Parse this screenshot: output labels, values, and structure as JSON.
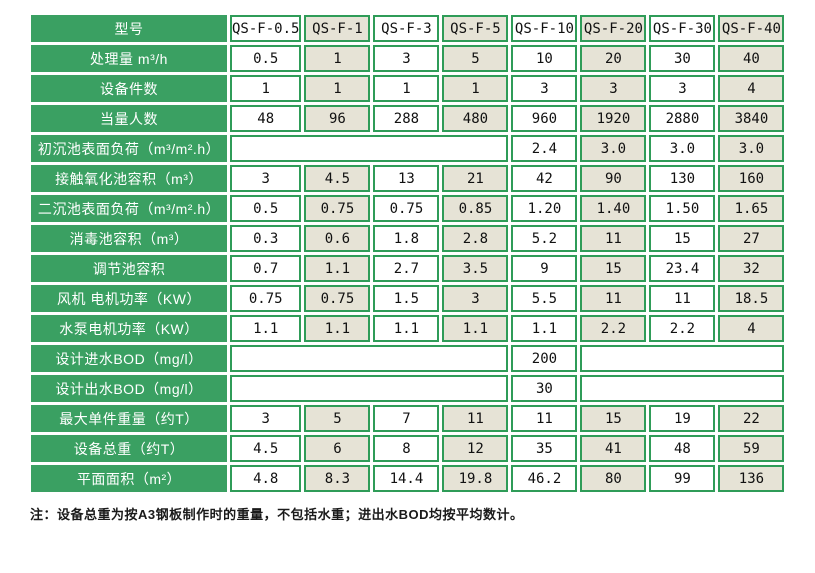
{
  "colors": {
    "label_green": "#3aa062",
    "border_green": "#2f9c58",
    "cell_beige": "#e6e3d6",
    "cell_white": "#ffffff"
  },
  "table": {
    "header": {
      "label": "型号",
      "models": [
        "QS-F-0.5",
        "QS-F-1",
        "QS-F-3",
        "QS-F-5",
        "QS-F-10",
        "QS-F-20",
        "QS-F-30",
        "QS-F-40"
      ]
    },
    "rows": [
      {
        "label": "处理量 m³/h",
        "cells": [
          {
            "v": "0.5"
          },
          {
            "v": "1"
          },
          {
            "v": "3"
          },
          {
            "v": "5"
          },
          {
            "v": "10"
          },
          {
            "v": "20"
          },
          {
            "v": "30"
          },
          {
            "v": "40"
          }
        ]
      },
      {
        "label": "设备件数",
        "cells": [
          {
            "v": "1"
          },
          {
            "v": "1"
          },
          {
            "v": "1"
          },
          {
            "v": "1"
          },
          {
            "v": "3"
          },
          {
            "v": "3"
          },
          {
            "v": "3"
          },
          {
            "v": "4"
          }
        ]
      },
      {
        "label": "当量人数",
        "cells": [
          {
            "v": "48"
          },
          {
            "v": "96"
          },
          {
            "v": "288"
          },
          {
            "v": "480"
          },
          {
            "v": "960"
          },
          {
            "v": "1920"
          },
          {
            "v": "2880"
          },
          {
            "v": "3840"
          }
        ]
      },
      {
        "label": "初沉池表面负荷（m³/m².h）",
        "cells": [
          {
            "v": "",
            "span": 4
          },
          {
            "v": "2.4"
          },
          {
            "v": "3.0"
          },
          {
            "v": "3.0"
          },
          {
            "v": "3.0"
          }
        ]
      },
      {
        "label": "接触氧化池容积（m³）",
        "cells": [
          {
            "v": "3"
          },
          {
            "v": "4.5"
          },
          {
            "v": "13"
          },
          {
            "v": "21"
          },
          {
            "v": "42"
          },
          {
            "v": "90"
          },
          {
            "v": "130"
          },
          {
            "v": "160"
          }
        ]
      },
      {
        "label": "二沉池表面负荷（m³/m².h）",
        "cells": [
          {
            "v": "0.5"
          },
          {
            "v": "0.75"
          },
          {
            "v": "0.75"
          },
          {
            "v": "0.85"
          },
          {
            "v": "1.20"
          },
          {
            "v": "1.40"
          },
          {
            "v": "1.50"
          },
          {
            "v": "1.65"
          }
        ]
      },
      {
        "label": "消毒池容积（m³）",
        "cells": [
          {
            "v": "0.3"
          },
          {
            "v": "0.6"
          },
          {
            "v": "1.8"
          },
          {
            "v": "2.8"
          },
          {
            "v": "5.2"
          },
          {
            "v": "11"
          },
          {
            "v": "15"
          },
          {
            "v": "27"
          }
        ]
      },
      {
        "label": "调节池容积",
        "cells": [
          {
            "v": "0.7"
          },
          {
            "v": "1.1"
          },
          {
            "v": "2.7"
          },
          {
            "v": "3.5"
          },
          {
            "v": "9"
          },
          {
            "v": "15"
          },
          {
            "v": "23.4"
          },
          {
            "v": "32"
          }
        ]
      },
      {
        "label": "风机 电机功率（KW）",
        "cells": [
          {
            "v": "0.75"
          },
          {
            "v": "0.75"
          },
          {
            "v": "1.5"
          },
          {
            "v": "3"
          },
          {
            "v": "5.5"
          },
          {
            "v": "11"
          },
          {
            "v": "11"
          },
          {
            "v": "18.5"
          }
        ]
      },
      {
        "label": "水泵电机功率（KW）",
        "cells": [
          {
            "v": "1.1"
          },
          {
            "v": "1.1"
          },
          {
            "v": "1.1"
          },
          {
            "v": "1.1"
          },
          {
            "v": "1.1"
          },
          {
            "v": "2.2"
          },
          {
            "v": "2.2"
          },
          {
            "v": "4"
          }
        ]
      },
      {
        "label": "设计进水BOD（mg/l）",
        "cells": [
          {
            "v": "",
            "span": 4
          },
          {
            "v": "200"
          },
          {
            "v": "",
            "span": 3
          }
        ]
      },
      {
        "label": "设计出水BOD（mg/l）",
        "cells": [
          {
            "v": "",
            "span": 4
          },
          {
            "v": "30"
          },
          {
            "v": "",
            "span": 3
          }
        ]
      },
      {
        "label": "最大单件重量（约T）",
        "cells": [
          {
            "v": "3"
          },
          {
            "v": "5"
          },
          {
            "v": "7"
          },
          {
            "v": "11"
          },
          {
            "v": "11"
          },
          {
            "v": "15"
          },
          {
            "v": "19"
          },
          {
            "v": "22"
          }
        ]
      },
      {
        "label": "设备总重（约T）",
        "cells": [
          {
            "v": "4.5"
          },
          {
            "v": "6"
          },
          {
            "v": "8"
          },
          {
            "v": "12"
          },
          {
            "v": "35"
          },
          {
            "v": "41"
          },
          {
            "v": "48"
          },
          {
            "v": "59"
          }
        ]
      },
      {
        "label": "平面面积（m²）",
        "cells": [
          {
            "v": "4.8"
          },
          {
            "v": "8.3"
          },
          {
            "v": "14.4"
          },
          {
            "v": "19.8"
          },
          {
            "v": "46.2"
          },
          {
            "v": "80"
          },
          {
            "v": "99"
          },
          {
            "v": "136"
          }
        ]
      }
    ]
  },
  "note": "注：设备总重为按A3钢板制作时的重量，不包括水重；进出水BOD均按平均数计。"
}
